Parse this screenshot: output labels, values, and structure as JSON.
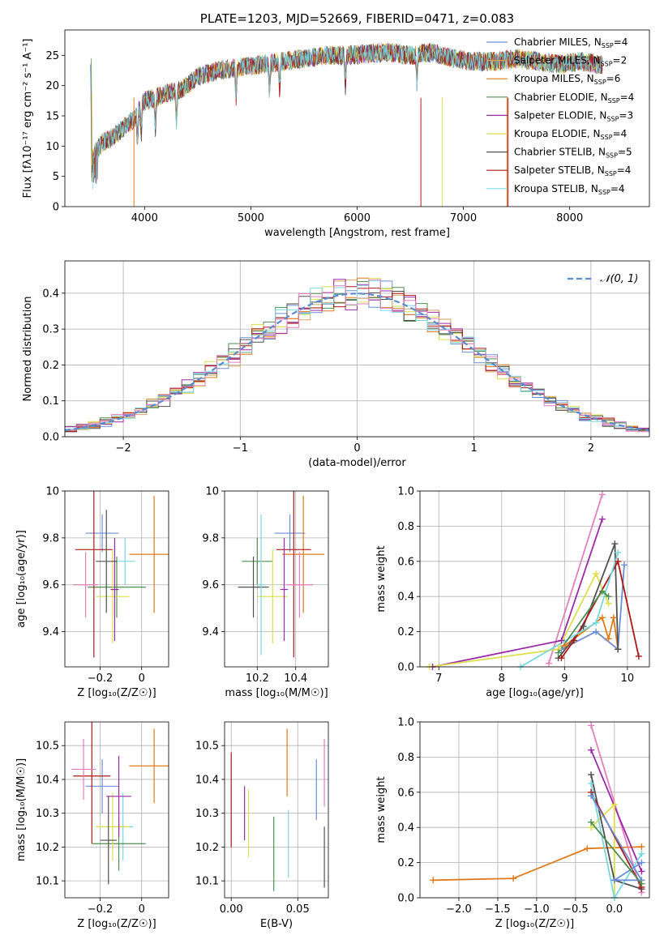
{
  "chart_data": [
    {
      "type": "line",
      "title": "PLATE=1203, MJD=52669, FIBERID=0471, z=0.083",
      "xlabel": "wavelength [Angstrom, rest frame]",
      "ylabel": "Flux [fλ10⁻¹⁷ erg cm⁻² s⁻¹ A⁻¹]",
      "xlim": [
        3250,
        8750
      ],
      "ylim": [
        0,
        29.2
      ],
      "xticks": [
        4000,
        5000,
        6000,
        7000,
        8000
      ],
      "yticks": [
        0,
        5,
        10,
        15,
        20,
        25
      ],
      "grid": false,
      "legend_position": "upper right",
      "legend": [
        {
          "label": "Chabrier MILES, N",
          "sub": "SSP",
          "tail": "=4",
          "color": "#6b8fd6"
        },
        {
          "label": "Salpeter MILES, N",
          "sub": "SSP",
          "tail": "=2",
          "color": "#d9a35f"
        },
        {
          "label": "Kroupa MILES, N",
          "sub": "SSP",
          "tail": "=6",
          "color": "#e07b1a"
        },
        {
          "label": "Chabrier ELODIE, N",
          "sub": "SSP",
          "tail": "=4",
          "color": "#4f8f4f"
        },
        {
          "label": "Salpeter ELODIE, N",
          "sub": "SSP",
          "tail": "=3",
          "color": "#9c2aa8"
        },
        {
          "label": "Kroupa ELODIE, N",
          "sub": "SSP",
          "tail": "=4",
          "color": "#dede4a"
        },
        {
          "label": "Chabrier STELIB, N",
          "sub": "SSP",
          "tail": "=5",
          "color": "#505050"
        },
        {
          "label": "Salpeter STELIB, N",
          "sub": "SSP",
          "tail": "=4",
          "color": "#b01818"
        },
        {
          "label": "Kroupa STELIB, N",
          "sub": "SSP",
          "tail": "=4",
          "color": "#77d8e2"
        }
      ],
      "spectrum_envelope": {
        "wavelength": [
          3500,
          3600,
          3700,
          3800,
          3900,
          4000,
          4100,
          4200,
          4300,
          4400,
          4500,
          4700,
          4900,
          5100,
          5300,
          5500,
          5700,
          5900,
          6100,
          6300,
          6500,
          6700,
          6900,
          7100,
          7300,
          7500,
          7700,
          7900,
          8100,
          8300
        ],
        "flux": [
          8.0,
          10.5,
          11.5,
          13.0,
          14.5,
          17.5,
          18.0,
          18.8,
          19.0,
          20.0,
          21.5,
          22.5,
          23.0,
          23.5,
          24.0,
          24.5,
          25.0,
          25.0,
          25.3,
          25.5,
          25.0,
          25.5,
          24.5,
          24.0,
          24.0,
          24.5,
          24.0,
          23.5,
          24.0,
          23.5
        ]
      }
    },
    {
      "type": "histogram",
      "xlabel": "(data-model)/error",
      "ylabel": "Normed distribution",
      "xlim": [
        -2.5,
        2.5
      ],
      "ylim": [
        0,
        0.49
      ],
      "xticks": [
        -2,
        -1,
        0,
        1,
        2
      ],
      "yticks": [
        0.0,
        0.1,
        0.2,
        0.3,
        0.4
      ],
      "grid": true,
      "legend_position": "upper right",
      "legend": [
        {
          "label": "𝒩(0, 1)",
          "color": "#5b8bd0",
          "style": "dashed"
        }
      ],
      "reference_curve": "Gaussian N(0,1)",
      "bin_width": 0.1
    },
    {
      "type": "scatter",
      "xlabel": "Z [log₁₀(Z/Z☉)]",
      "ylabel": "age  [log₁₀(age/yr)]",
      "xlim": [
        -0.37,
        0.13
      ],
      "ylim": [
        9.25,
        10.0
      ],
      "xticks": [
        -0.2,
        0.0
      ],
      "yticks": [
        9.4,
        9.6,
        9.8,
        10.0
      ],
      "grid": true,
      "points": [
        {
          "x": -0.19,
          "y": 9.82,
          "xerr": 0.08,
          "yerr": 0.08,
          "color": "#6b8fd6"
        },
        {
          "x": 0.06,
          "y": 9.73,
          "xerr": 0.12,
          "yerr": 0.25,
          "color": "#e07b1a"
        },
        {
          "x": -0.08,
          "y": 9.7,
          "xerr": 0.05,
          "yerr": 0.1,
          "color": "#77d8e2"
        },
        {
          "x": -0.12,
          "y": 9.59,
          "xerr": 0.14,
          "yerr": 0.13,
          "color": "#4f8f4f"
        },
        {
          "x": -0.23,
          "y": 9.75,
          "xerr": 0.09,
          "yerr": 0.46,
          "color": "#b01818"
        },
        {
          "x": -0.14,
          "y": 9.55,
          "xerr": 0.08,
          "yerr": 0.2,
          "color": "#dede4a"
        },
        {
          "x": -0.27,
          "y": 9.6,
          "xerr": 0.06,
          "yerr": 0.14,
          "color": "#e37fc0"
        },
        {
          "x": -0.13,
          "y": 9.58,
          "xerr": 0.02,
          "yerr": 0.22,
          "color": "#9c2aa8"
        },
        {
          "x": -0.17,
          "y": 9.7,
          "xerr": 0.05,
          "yerr": 0.22,
          "color": "#505050"
        }
      ]
    },
    {
      "type": "scatter",
      "xlabel": "mass [log₁₀(M/M☉)]",
      "ylabel": "",
      "xlim": [
        10.03,
        10.57
      ],
      "ylim": [
        9.25,
        10.0
      ],
      "xticks": [
        10.2,
        10.4
      ],
      "yticks": [
        9.4,
        9.6,
        9.8,
        10.0
      ],
      "grid": true,
      "points": [
        {
          "x": 10.37,
          "y": 9.82,
          "xerr": 0.08,
          "yerr": 0.08,
          "color": "#6b8fd6"
        },
        {
          "x": 10.44,
          "y": 9.73,
          "xerr": 0.11,
          "yerr": 0.25,
          "color": "#e07b1a"
        },
        {
          "x": 10.2,
          "y": 9.7,
          "xerr": 0.08,
          "yerr": 0.1,
          "color": "#4f8f4f"
        },
        {
          "x": 10.18,
          "y": 9.59,
          "xerr": 0.08,
          "yerr": 0.13,
          "color": "#505050"
        },
        {
          "x": 10.39,
          "y": 9.75,
          "xerr": 0.09,
          "yerr": 0.46,
          "color": "#b01818"
        },
        {
          "x": 10.28,
          "y": 9.55,
          "xerr": 0.08,
          "yerr": 0.2,
          "color": "#dede4a"
        },
        {
          "x": 10.42,
          "y": 9.6,
          "xerr": 0.07,
          "yerr": 0.14,
          "color": "#e37fc0"
        },
        {
          "x": 10.34,
          "y": 9.58,
          "xerr": 0.02,
          "yerr": 0.22,
          "color": "#9c2aa8"
        },
        {
          "x": 10.22,
          "y": 9.6,
          "xerr": 0.02,
          "yerr": 0.3,
          "color": "#77d8e2"
        }
      ]
    },
    {
      "type": "line",
      "xlabel": "age  [log₁₀(age/yr)]",
      "ylabel": "mass weight",
      "xlim": [
        6.7,
        10.35
      ],
      "ylim": [
        0,
        1.0
      ],
      "xticks": [
        7,
        8,
        9,
        10
      ],
      "yticks": [
        0.0,
        0.2,
        0.4,
        0.6,
        0.8,
        1.0
      ],
      "grid": true,
      "series": [
        {
          "color": "#6b8fd6",
          "x": [
            8.95,
            9.5,
            9.85,
            9.95
          ],
          "y": [
            0.1,
            0.2,
            0.1,
            0.58
          ]
        },
        {
          "color": "#e37fc0",
          "x": [
            8.75,
            9.6
          ],
          "y": [
            0.02,
            0.98
          ]
        },
        {
          "color": "#9c2aa8",
          "x": [
            6.9,
            8.95,
            9.6
          ],
          "y": [
            0.0,
            0.15,
            0.84
          ]
        },
        {
          "color": "#dede4a",
          "x": [
            6.85,
            8.9,
            9.5,
            9.7
          ],
          "y": [
            0.0,
            0.1,
            0.53,
            0.36
          ]
        },
        {
          "color": "#e07b1a",
          "x": [
            9.0,
            9.6,
            9.7,
            9.78,
            9.85
          ],
          "y": [
            0.12,
            0.28,
            0.16,
            0.28,
            0.1
          ]
        },
        {
          "color": "#505050",
          "x": [
            8.9,
            9.3,
            9.8,
            9.85
          ],
          "y": [
            0.05,
            0.23,
            0.7,
            0.1
          ]
        },
        {
          "color": "#b01818",
          "x": [
            8.95,
            9.15,
            9.85,
            10.18
          ],
          "y": [
            0.05,
            0.15,
            0.6,
            0.06
          ]
        },
        {
          "color": "#77d8e2",
          "x": [
            8.3,
            9.5,
            9.85
          ],
          "y": [
            0.0,
            0.25,
            0.65
          ]
        },
        {
          "color": "#4f8f4f",
          "x": [
            8.9,
            9.6,
            9.7
          ],
          "y": [
            0.08,
            0.43,
            0.4
          ]
        }
      ]
    },
    {
      "type": "scatter",
      "xlabel": "Z [log₁₀(Z/Z☉)]",
      "ylabel": "mass [log₁₀(M/M☉)]",
      "xlim": [
        -0.37,
        0.13
      ],
      "ylim": [
        10.05,
        10.57
      ],
      "xticks": [
        -0.2,
        0.0
      ],
      "yticks": [
        10.1,
        10.2,
        10.3,
        10.4,
        10.5
      ],
      "grid": true,
      "points": [
        {
          "x": -0.19,
          "y": 10.38,
          "xerr": 0.08,
          "yerr": 0.08,
          "color": "#6b8fd6"
        },
        {
          "x": 0.06,
          "y": 10.44,
          "xerr": 0.12,
          "yerr": 0.11,
          "color": "#e07b1a"
        },
        {
          "x": -0.09,
          "y": 10.26,
          "xerr": 0.05,
          "yerr": 0.1,
          "color": "#77d8e2"
        },
        {
          "x": -0.11,
          "y": 10.21,
          "xerr": 0.13,
          "yerr": 0.08,
          "color": "#4f8f4f"
        },
        {
          "x": -0.24,
          "y": 10.41,
          "xerr": 0.09,
          "yerr": 0.2,
          "color": "#b01818"
        },
        {
          "x": -0.14,
          "y": 10.26,
          "xerr": 0.08,
          "yerr": 0.1,
          "color": "#dede4a"
        },
        {
          "x": -0.28,
          "y": 10.43,
          "xerr": 0.06,
          "yerr": 0.09,
          "color": "#e37fc0"
        },
        {
          "x": -0.11,
          "y": 10.35,
          "xerr": 0.06,
          "yerr": 0.12,
          "color": "#9c2aa8"
        },
        {
          "x": -0.16,
          "y": 10.22,
          "xerr": 0.04,
          "yerr": 0.13,
          "color": "#505050"
        }
      ]
    },
    {
      "type": "errorbar",
      "xlabel": "E(B-V)",
      "ylabel": "",
      "xlim": [
        -0.005,
        0.073
      ],
      "ylim": [
        10.05,
        10.57
      ],
      "xticks": [
        0.0,
        0.05
      ],
      "xtick_labels": [
        "0.00",
        "0.05"
      ],
      "yticks": [
        10.1,
        10.2,
        10.3,
        10.4,
        10.5
      ],
      "grid": true,
      "points": [
        {
          "x": 0.0,
          "y": 10.34,
          "yerr": 0.14,
          "color": "#b01818"
        },
        {
          "x": 0.01,
          "y": 10.3,
          "yerr": 0.08,
          "color": "#9c2aa8"
        },
        {
          "x": 0.013,
          "y": 10.27,
          "yerr": 0.1,
          "color": "#dede4a"
        },
        {
          "x": 0.032,
          "y": 10.18,
          "yerr": 0.11,
          "color": "#4f8f4f"
        },
        {
          "x": 0.042,
          "y": 10.45,
          "yerr": 0.1,
          "color": "#e07b1a"
        },
        {
          "x": 0.043,
          "y": 10.21,
          "yerr": 0.1,
          "color": "#77d8e2"
        },
        {
          "x": 0.064,
          "y": 10.37,
          "yerr": 0.09,
          "color": "#6b8fd6"
        },
        {
          "x": 0.07,
          "y": 10.42,
          "yerr": 0.1,
          "color": "#e37fc0"
        },
        {
          "x": 0.07,
          "y": 10.17,
          "yerr": 0.09,
          "color": "#505050"
        }
      ]
    },
    {
      "type": "line",
      "xlabel": "Z [log₁₀(Z/Z☉)]",
      "ylabel": "mass weight",
      "xlim": [
        -2.5,
        0.45
      ],
      "ylim": [
        0,
        1.0
      ],
      "xticks": [
        -2.0,
        -1.5,
        -1.0,
        -0.5,
        0.0
      ],
      "xtick_labels": [
        "−2.0",
        "−1.5",
        "−1.0",
        "−0.5",
        "0.0"
      ],
      "yticks": [
        0.0,
        0.2,
        0.4,
        0.6,
        0.8,
        1.0
      ],
      "grid": true,
      "series": [
        {
          "color": "#e07b1a",
          "x": [
            -2.33,
            -1.3,
            -0.35,
            0.35
          ],
          "y": [
            0.1,
            0.11,
            0.28,
            0.29
          ]
        },
        {
          "color": "#e37fc0",
          "x": [
            -0.3,
            0.35
          ],
          "y": [
            0.98,
            0.03
          ]
        },
        {
          "color": "#9c2aa8",
          "x": [
            -0.3,
            0.35
          ],
          "y": [
            0.84,
            0.15
          ]
        },
        {
          "color": "#dede4a",
          "x": [
            -0.3,
            0.0,
            0.0
          ],
          "y": [
            0.4,
            0.53,
            0.0
          ]
        },
        {
          "color": "#505050",
          "x": [
            -0.3,
            0.0,
            0.35
          ],
          "y": [
            0.7,
            0.1,
            0.05
          ]
        },
        {
          "color": "#b01818",
          "x": [
            -0.3,
            0.35
          ],
          "y": [
            0.6,
            0.06
          ]
        },
        {
          "color": "#77d8e2",
          "x": [
            -0.3,
            0.0,
            0.35
          ],
          "y": [
            0.65,
            0.0,
            0.25
          ]
        },
        {
          "color": "#6b8fd6",
          "x": [
            -0.3,
            0.35,
            0.0,
            0.35
          ],
          "y": [
            0.58,
            0.1,
            0.1,
            0.2
          ]
        },
        {
          "color": "#4f8f4f",
          "x": [
            -0.3,
            0.35
          ],
          "y": [
            0.43,
            0.08
          ]
        }
      ]
    }
  ]
}
